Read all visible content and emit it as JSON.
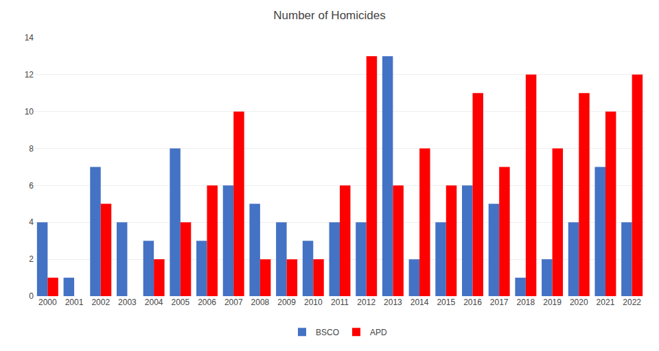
{
  "chart_data": {
    "type": "bar",
    "title": "Number of Homicides",
    "categories": [
      "2000",
      "2001",
      "2002",
      "2003",
      "2004",
      "2005",
      "2006",
      "2007",
      "2008",
      "2009",
      "2010",
      "2011",
      "2012",
      "2013",
      "2014",
      "2015",
      "2016",
      "2017",
      "2018",
      "2019",
      "2020",
      "2021",
      "2022"
    ],
    "series": [
      {
        "name": "BSCO",
        "color": "#4472C4",
        "values": [
          4,
          1,
          7,
          4,
          3,
          8,
          3,
          6,
          5,
          4,
          3,
          4,
          4,
          13,
          2,
          4,
          6,
          5,
          1,
          2,
          4,
          7,
          4
        ]
      },
      {
        "name": "APD",
        "color": "#FF0000",
        "values": [
          1,
          0,
          5,
          0,
          2,
          4,
          6,
          10,
          2,
          2,
          2,
          6,
          13,
          6,
          8,
          6,
          11,
          7,
          12,
          8,
          11,
          10,
          12
        ]
      }
    ],
    "ylim": [
      0,
      14
    ],
    "yticks": [
      0,
      2,
      4,
      6,
      8,
      10,
      12,
      14
    ],
    "grid": true,
    "legend": "bottom"
  }
}
